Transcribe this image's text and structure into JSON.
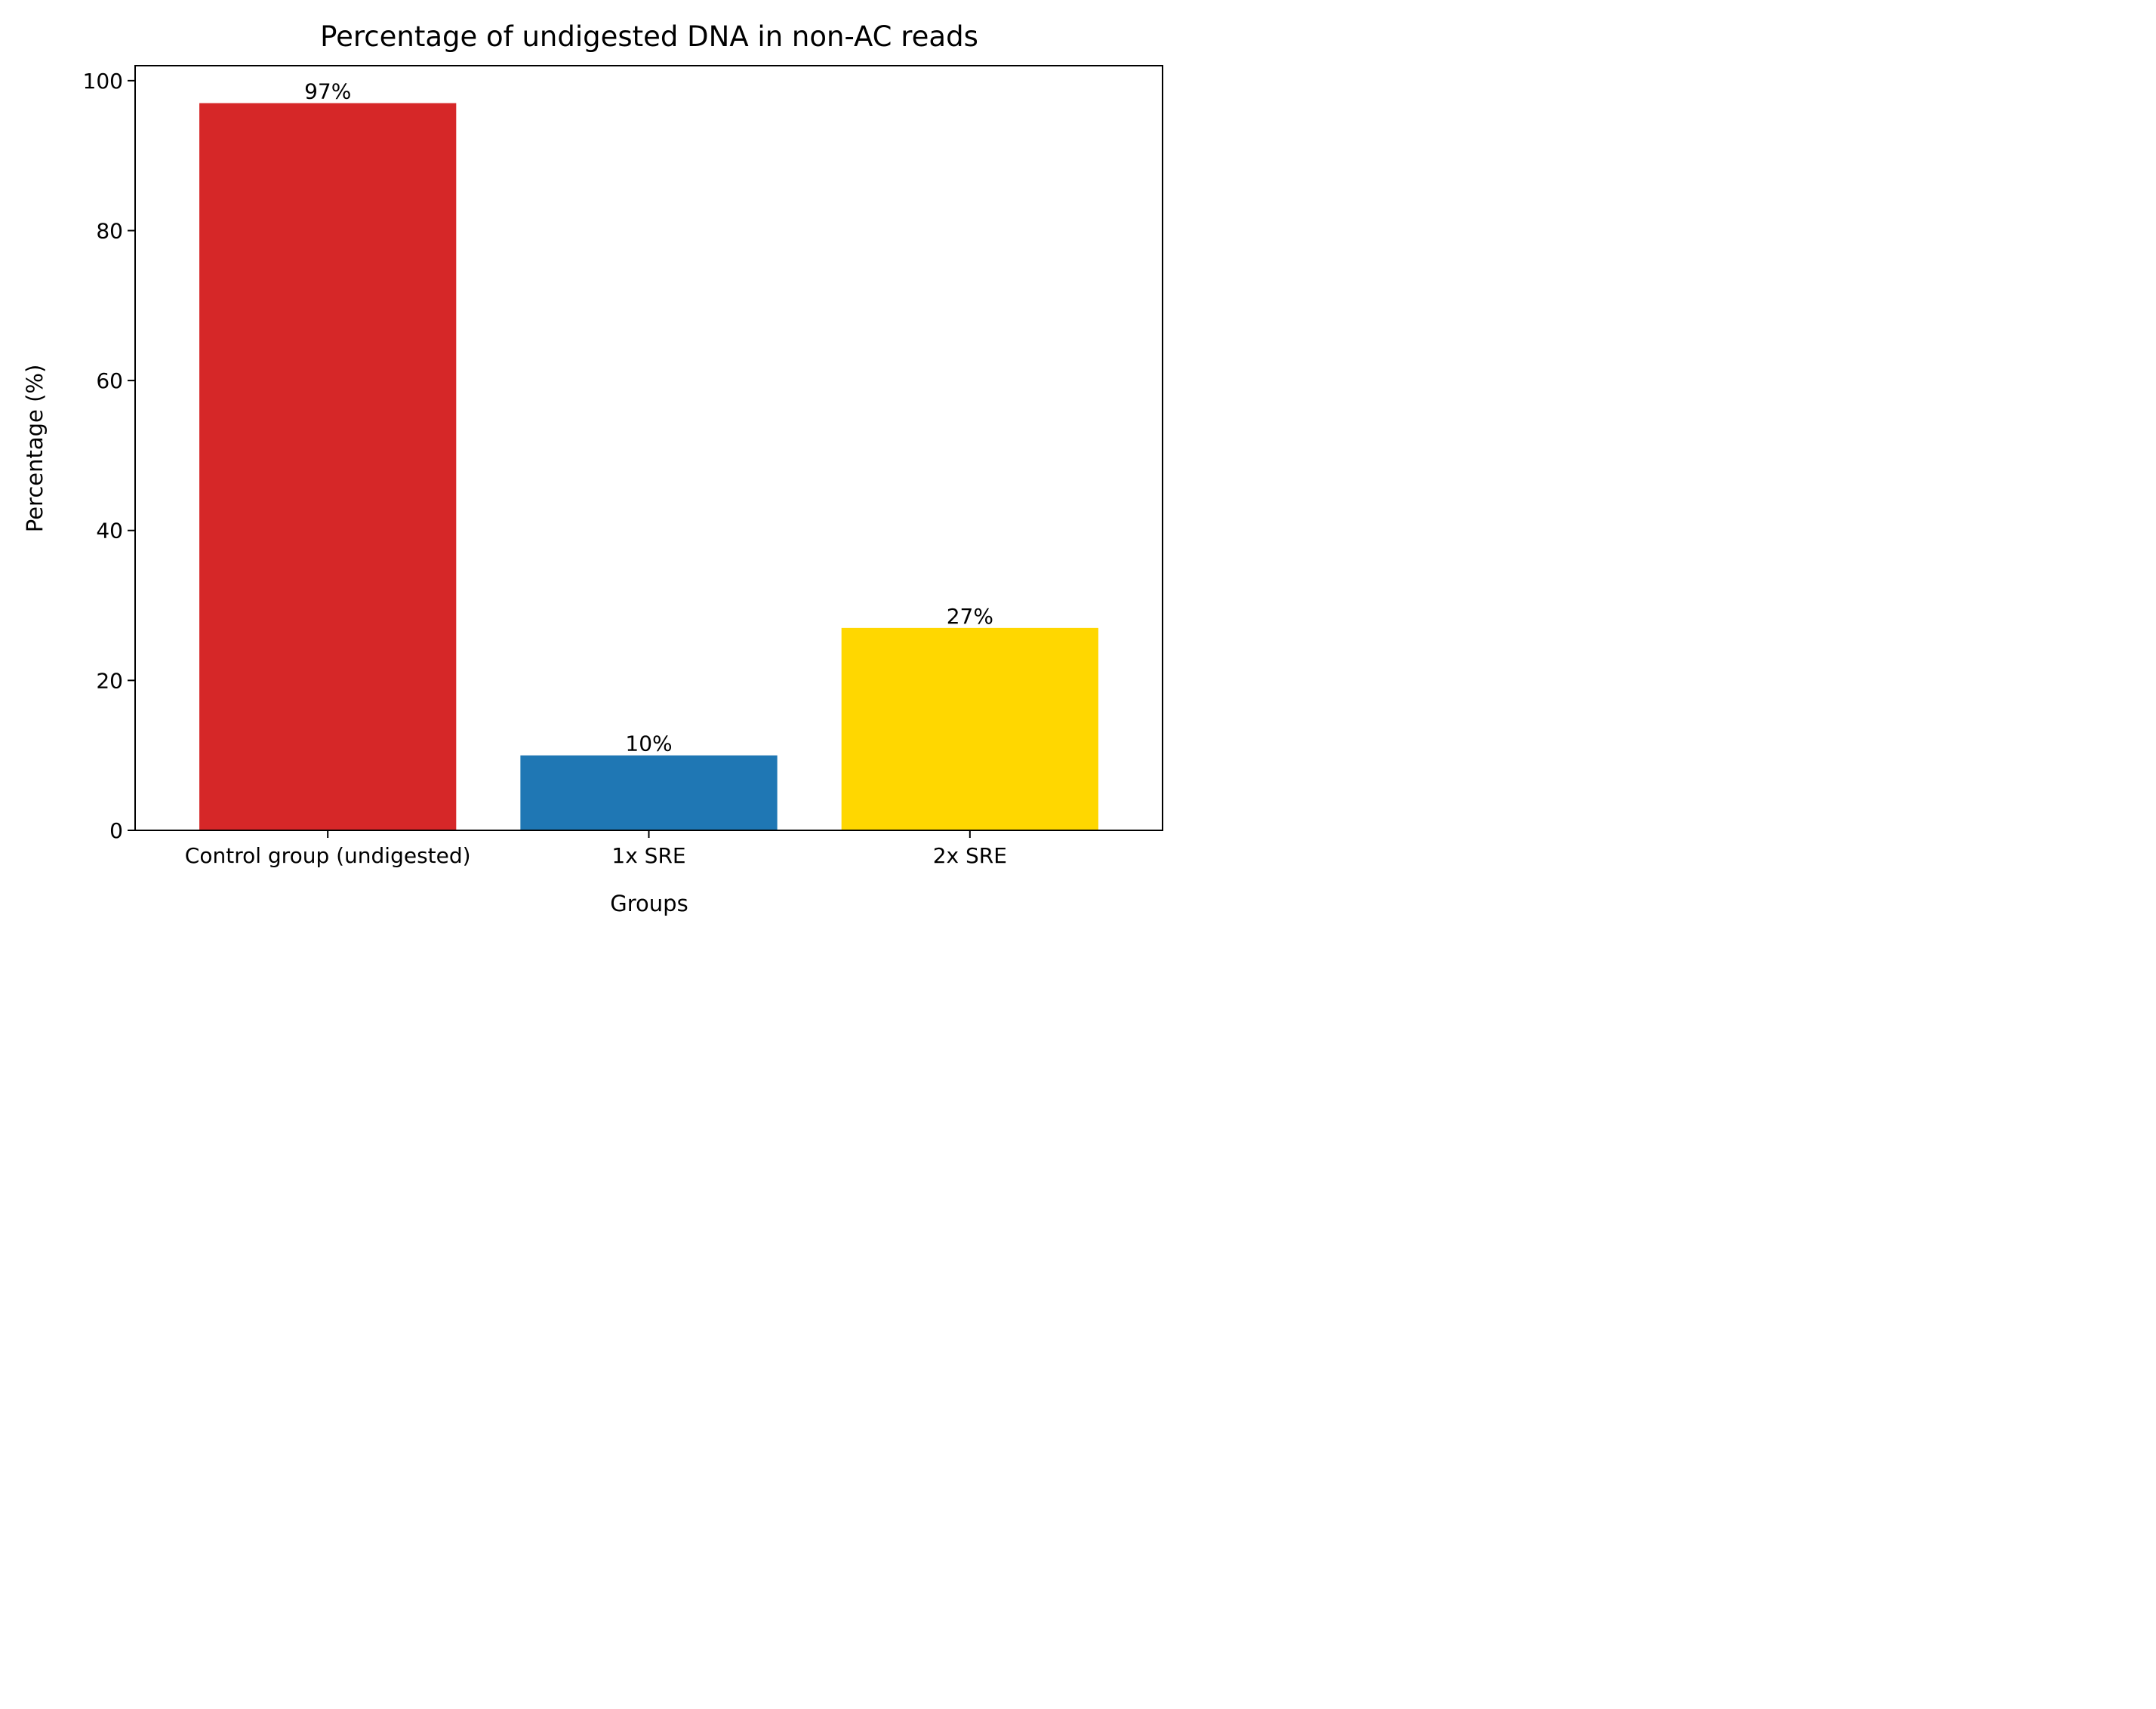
{
  "chart_data": {
    "type": "bar",
    "title": "Percentage of undigested DNA in non-AC reads",
    "xlabel": "Groups",
    "ylabel": "Percentage (%)",
    "categories": [
      "Control group (undigested)",
      "1x SRE",
      "2x SRE"
    ],
    "values": [
      97,
      10,
      27
    ],
    "value_labels": [
      "97%",
      "10%",
      "27%"
    ],
    "colors": [
      "#d62728",
      "#1f77b4",
      "#ffd700"
    ],
    "ylim": [
      0,
      102
    ],
    "yticks": [
      0,
      20,
      40,
      60,
      80,
      100
    ],
    "ytick_labels": [
      "0",
      "20",
      "40",
      "60",
      "80",
      "100"
    ],
    "grid": false,
    "legend": "none"
  }
}
